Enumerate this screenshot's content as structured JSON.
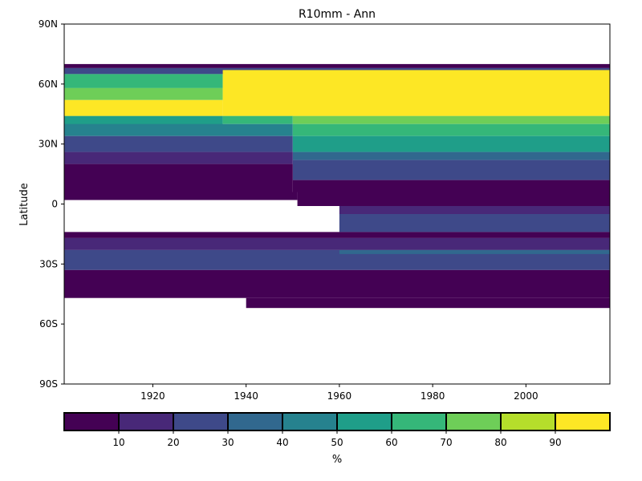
{
  "chart_data": {
    "type": "heatmap",
    "title": "R10mm - Ann",
    "xlabel": "",
    "ylabel": "Latitude",
    "xlim": [
      1901,
      2018
    ],
    "ylim": [
      -90,
      90
    ],
    "x_ticks": [
      1920,
      1940,
      1960,
      1980,
      2000
    ],
    "y_ticks": [
      {
        "value": 90,
        "label": "90N"
      },
      {
        "value": 60,
        "label": "60N"
      },
      {
        "value": 30,
        "label": "30N"
      },
      {
        "value": 0,
        "label": "0"
      },
      {
        "value": -30,
        "label": "30S"
      },
      {
        "value": -60,
        "label": "60S"
      },
      {
        "value": -90,
        "label": "90S"
      }
    ],
    "grid": false,
    "colorbar": {
      "label": "%",
      "ticks": [
        10,
        20,
        30,
        40,
        50,
        60,
        70,
        80,
        90
      ],
      "bins": [
        {
          "range": [
            0,
            10
          ],
          "color": "#440154"
        },
        {
          "range": [
            10,
            20
          ],
          "color": "#482878"
        },
        {
          "range": [
            20,
            30
          ],
          "color": "#3e4989"
        },
        {
          "range": [
            30,
            40
          ],
          "color": "#31688e"
        },
        {
          "range": [
            40,
            50
          ],
          "color": "#26828e"
        },
        {
          "range": [
            50,
            60
          ],
          "color": "#1f9e89"
        },
        {
          "range": [
            60,
            70
          ],
          "color": "#35b779"
        },
        {
          "range": [
            70,
            80
          ],
          "color": "#6ece58"
        },
        {
          "range": [
            80,
            90
          ],
          "color": "#b5de2b"
        },
        {
          "range": [
            90,
            100
          ],
          "color": "#fde725"
        }
      ]
    },
    "regions": [
      {
        "x": [
          1901,
          2018
        ],
        "lat": [
          68,
          70
        ],
        "value": 5
      },
      {
        "x": [
          1901,
          2018
        ],
        "lat": [
          65,
          68
        ],
        "value": 20
      },
      {
        "x": [
          1901,
          1935
        ],
        "lat": [
          58,
          65
        ],
        "value": 65
      },
      {
        "x": [
          1901,
          1935
        ],
        "lat": [
          52,
          58
        ],
        "value": 75
      },
      {
        "x": [
          1901,
          1935
        ],
        "lat": [
          44,
          52
        ],
        "value": 92
      },
      {
        "x": [
          1901,
          1935
        ],
        "lat": [
          38,
          44
        ],
        "value": 55
      },
      {
        "x": [
          1935,
          2018
        ],
        "lat": [
          44,
          67
        ],
        "value": 95
      },
      {
        "x": [
          1935,
          1950
        ],
        "lat": [
          40,
          44
        ],
        "value": 65
      },
      {
        "x": [
          1950,
          2018
        ],
        "lat": [
          40,
          44
        ],
        "value": 75
      },
      {
        "x": [
          1901,
          1950
        ],
        "lat": [
          34,
          40
        ],
        "value": 45
      },
      {
        "x": [
          1950,
          2018
        ],
        "lat": [
          34,
          40
        ],
        "value": 60
      },
      {
        "x": [
          1901,
          1950
        ],
        "lat": [
          26,
          34
        ],
        "value": 25
      },
      {
        "x": [
          1950,
          2018
        ],
        "lat": [
          26,
          34
        ],
        "value": 55
      },
      {
        "x": [
          1950,
          2018
        ],
        "lat": [
          22,
          26
        ],
        "value": 35
      },
      {
        "x": [
          1901,
          1950
        ],
        "lat": [
          20,
          26
        ],
        "value": 15
      },
      {
        "x": [
          1950,
          2018
        ],
        "lat": [
          12,
          22
        ],
        "value": 25
      },
      {
        "x": [
          1901,
          1950
        ],
        "lat": [
          6,
          20
        ],
        "value": 5
      },
      {
        "x": [
          1950,
          2018
        ],
        "lat": [
          6,
          12
        ],
        "value": 5
      },
      {
        "x": [
          1901,
          1951
        ],
        "lat": [
          2,
          6
        ],
        "value": 5
      },
      {
        "x": [
          1951,
          2018
        ],
        "lat": [
          -1,
          6
        ],
        "value": 5
      },
      {
        "x": [
          1960,
          2018
        ],
        "lat": [
          -5,
          -1
        ],
        "value": 15
      },
      {
        "x": [
          1960,
          2018
        ],
        "lat": [
          -14,
          -5
        ],
        "value": 25
      },
      {
        "x": [
          1901,
          2018
        ],
        "lat": [
          -17,
          -14
        ],
        "value": 5
      },
      {
        "x": [
          1901,
          2018
        ],
        "lat": [
          -23,
          -17
        ],
        "value": 15
      },
      {
        "x": [
          1901,
          2018
        ],
        "lat": [
          -33,
          -23
        ],
        "value": 25
      },
      {
        "x": [
          1960,
          2018
        ],
        "lat": [
          -25,
          -23
        ],
        "value": 35
      },
      {
        "x": [
          1901,
          2018
        ],
        "lat": [
          -47,
          -33
        ],
        "value": 5
      },
      {
        "x": [
          1940,
          2018
        ],
        "lat": [
          -52,
          -47
        ],
        "value": 5
      }
    ]
  }
}
